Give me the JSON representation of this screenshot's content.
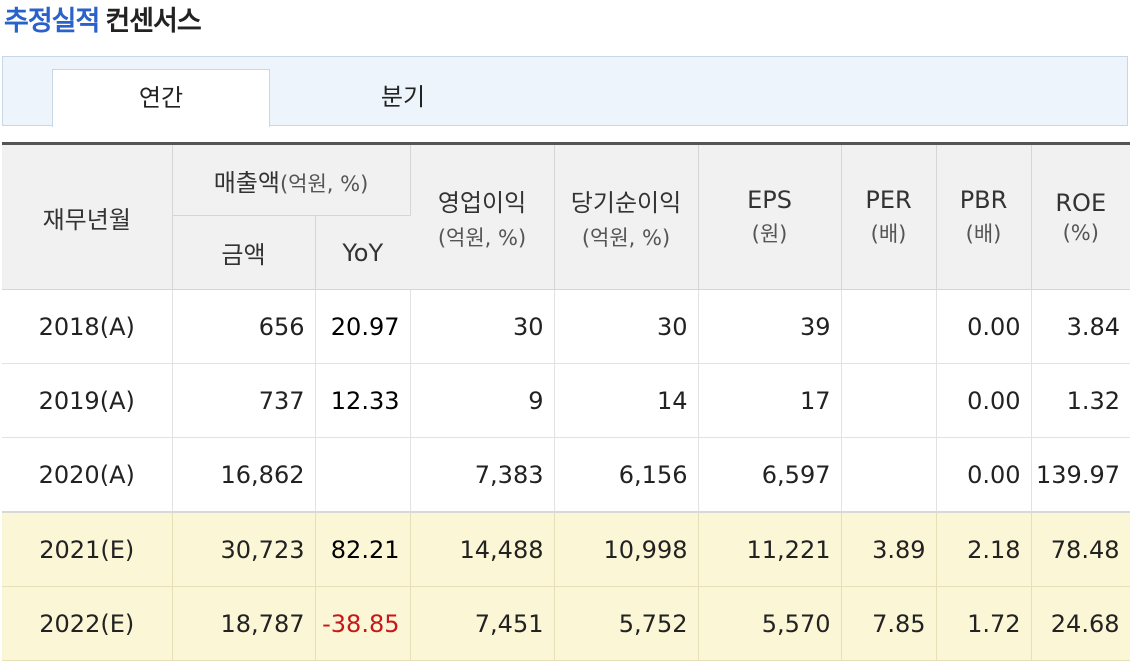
{
  "title": {
    "highlight": "추정실적",
    "rest": "컨센서스"
  },
  "tabs": [
    {
      "label": "연간",
      "active": true
    },
    {
      "label": "분기",
      "active": false
    }
  ],
  "headers": {
    "period": "재무년월",
    "sales_group": "매출액",
    "sales_group_unit": "(억원, %)",
    "sales_amount": "금액",
    "sales_yoy": "YoY",
    "op_profit": "영업이익",
    "op_profit_unit": "(억원, %)",
    "net_profit": "당기순이익",
    "net_profit_unit": "(억원, %)",
    "eps": "EPS",
    "eps_unit": "(원)",
    "per": "PER",
    "per_unit": "(배)",
    "pbr": "PBR",
    "pbr_unit": "(배)",
    "roe": "ROE",
    "roe_unit": "(%)"
  },
  "rows": [
    {
      "period": "2018(A)",
      "sales": "656",
      "yoy": "20.97",
      "op": "30",
      "net": "30",
      "eps": "39",
      "per": "",
      "pbr": "0.00",
      "roe": "3.84"
    },
    {
      "period": "2019(A)",
      "sales": "737",
      "yoy": "12.33",
      "op": "9",
      "net": "14",
      "eps": "17",
      "per": "",
      "pbr": "0.00",
      "roe": "1.32"
    },
    {
      "period": "2020(A)",
      "sales": "16,862",
      "yoy": "",
      "op": "7,383",
      "net": "6,156",
      "eps": "6,597",
      "per": "",
      "pbr": "0.00",
      "roe": "139.97"
    },
    {
      "period": "2021(E)",
      "sales": "30,723",
      "yoy": "82.21",
      "op": "14,488",
      "net": "10,998",
      "eps": "11,221",
      "per": "3.89",
      "pbr": "2.18",
      "roe": "78.48"
    },
    {
      "period": "2022(E)",
      "sales": "18,787",
      "yoy": "-38.85",
      "op": "7,451",
      "net": "5,752",
      "eps": "5,570",
      "per": "7.85",
      "pbr": "1.72",
      "roe": "24.68"
    }
  ],
  "colors": {
    "accent_blue": "#2a62c9",
    "negative_red": "#c8171a",
    "estimate_bg": "#fbf6d6"
  }
}
